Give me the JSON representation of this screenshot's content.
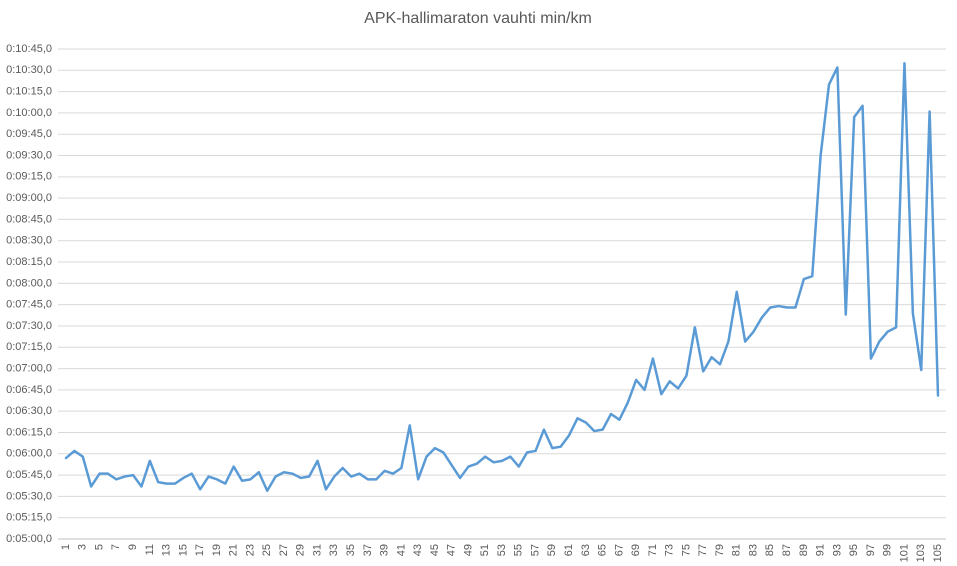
{
  "chart_data": {
    "type": "line",
    "title": "APK-hallimaraton vauhti min/km",
    "categories": [
      "1",
      null,
      "3",
      null,
      "5",
      null,
      "7",
      null,
      "9",
      null,
      "11",
      null,
      "13",
      null,
      "15",
      null,
      "17",
      null,
      "19",
      null,
      "21",
      null,
      "23",
      null,
      "25",
      null,
      "27",
      null,
      "29",
      null,
      "31",
      null,
      "33",
      null,
      "35",
      null,
      "37",
      null,
      "39",
      null,
      "41",
      null,
      "43",
      null,
      "45",
      null,
      "47",
      null,
      "49",
      null,
      "51",
      null,
      "53",
      null,
      "55",
      null,
      "57",
      null,
      "59",
      null,
      "61",
      null,
      "63",
      null,
      "65",
      null,
      "67",
      null,
      "69",
      null,
      "71",
      null,
      "73",
      null,
      "75",
      null,
      "77",
      null,
      "79",
      null,
      "81",
      null,
      "83",
      null,
      "85",
      null,
      "87",
      null,
      "89",
      null,
      "91",
      null,
      "93",
      null,
      "95",
      null,
      "97",
      null,
      "99",
      null,
      "101",
      null,
      "103",
      null,
      "105"
    ],
    "values": [
      357,
      362,
      358,
      337,
      346,
      346,
      342,
      344,
      345,
      337,
      355,
      340,
      339,
      339,
      343,
      346,
      335,
      344,
      342,
      339,
      351,
      341,
      342,
      347,
      334,
      344,
      347,
      346,
      343,
      344,
      355,
      335,
      344,
      350,
      344,
      346,
      342,
      342,
      348,
      346,
      350,
      380,
      342,
      358,
      364,
      361,
      352,
      343,
      351,
      353,
      358,
      354,
      355,
      358,
      351,
      361,
      362,
      377,
      364,
      365,
      373,
      385,
      382,
      376,
      377,
      388,
      384,
      396,
      412,
      405,
      427,
      402,
      411,
      406,
      415,
      449,
      418,
      428,
      423,
      439,
      474,
      439,
      446,
      456,
      463,
      464,
      463,
      463,
      483,
      485,
      570,
      620,
      632,
      458,
      597,
      605,
      427,
      439,
      446,
      449,
      635,
      459,
      419,
      601,
      401
    ],
    "color": "#5b9bd5",
    "ylim": [
      300,
      645
    ],
    "yticks": [
      {
        "value": 300,
        "label": "0:05:00,0"
      },
      {
        "value": 315,
        "label": "0:05:15,0"
      },
      {
        "value": 330,
        "label": "0:05:30,0"
      },
      {
        "value": 345,
        "label": "0:05:45,0"
      },
      {
        "value": 360,
        "label": "0:06:00,0"
      },
      {
        "value": 375,
        "label": "0:06:15,0"
      },
      {
        "value": 390,
        "label": "0:06:30,0"
      },
      {
        "value": 405,
        "label": "0:06:45,0"
      },
      {
        "value": 420,
        "label": "0:07:00,0"
      },
      {
        "value": 435,
        "label": "0:07:15,0"
      },
      {
        "value": 450,
        "label": "0:07:30,0"
      },
      {
        "value": 465,
        "label": "0:07:45,0"
      },
      {
        "value": 480,
        "label": "0:08:00,0"
      },
      {
        "value": 495,
        "label": "0:08:15,0"
      },
      {
        "value": 510,
        "label": "0:08:30,0"
      },
      {
        "value": 525,
        "label": "0:08:45,0"
      },
      {
        "value": 540,
        "label": "0:09:00,0"
      },
      {
        "value": 555,
        "label": "0:09:15,0"
      },
      {
        "value": 570,
        "label": "0:09:30,0"
      },
      {
        "value": 585,
        "label": "0:09:45,0"
      },
      {
        "value": 600,
        "label": "0:10:00,0"
      },
      {
        "value": 615,
        "label": "0:10:15,0"
      },
      {
        "value": 630,
        "label": "0:10:30,0"
      },
      {
        "value": 645,
        "label": "0:10:45,0"
      }
    ],
    "grid": true
  }
}
